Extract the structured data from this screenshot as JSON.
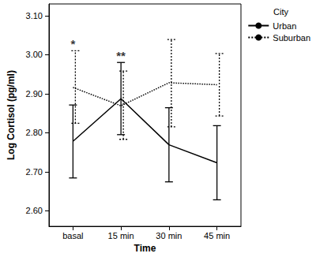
{
  "chart_data": {
    "type": "line",
    "x_label": "Time",
    "y_label": "Log Cortisol (pg/ml)",
    "categories": [
      "basal",
      "15 min",
      "30 min",
      "45 min"
    ],
    "series": [
      {
        "name": "Urban",
        "color": "#000000",
        "line_style": "solid",
        "values": [
          2.778,
          2.887,
          2.769,
          2.723
        ],
        "lower": [
          2.684,
          2.795,
          2.674,
          2.628
        ],
        "upper": [
          2.871,
          2.98,
          2.864,
          2.818
        ]
      },
      {
        "name": "Suburban",
        "color": "#000000",
        "line_style": "dotted",
        "values": [
          2.916,
          2.869,
          2.928,
          2.923
        ],
        "lower": [
          2.824,
          2.783,
          2.815,
          2.843
        ],
        "upper": [
          3.01,
          2.958,
          3.039,
          3.003
        ]
      }
    ],
    "ylim": [
      2.56,
      3.13
    ],
    "yticks": [
      {
        "value": 2.6,
        "label": "2.60"
      },
      {
        "value": 2.7,
        "label": "2.70"
      },
      {
        "value": 2.8,
        "label": "2.80"
      },
      {
        "value": 2.9,
        "label": "2.90"
      },
      {
        "value": 3.0,
        "label": "3.00"
      },
      {
        "value": 3.1,
        "label": "3.10"
      }
    ],
    "grid": false,
    "legend": "right",
    "legend_title": "City",
    "annotations": [
      {
        "text": "*",
        "x": "basal"
      },
      {
        "text": "**",
        "x": "15 min"
      }
    ]
  }
}
